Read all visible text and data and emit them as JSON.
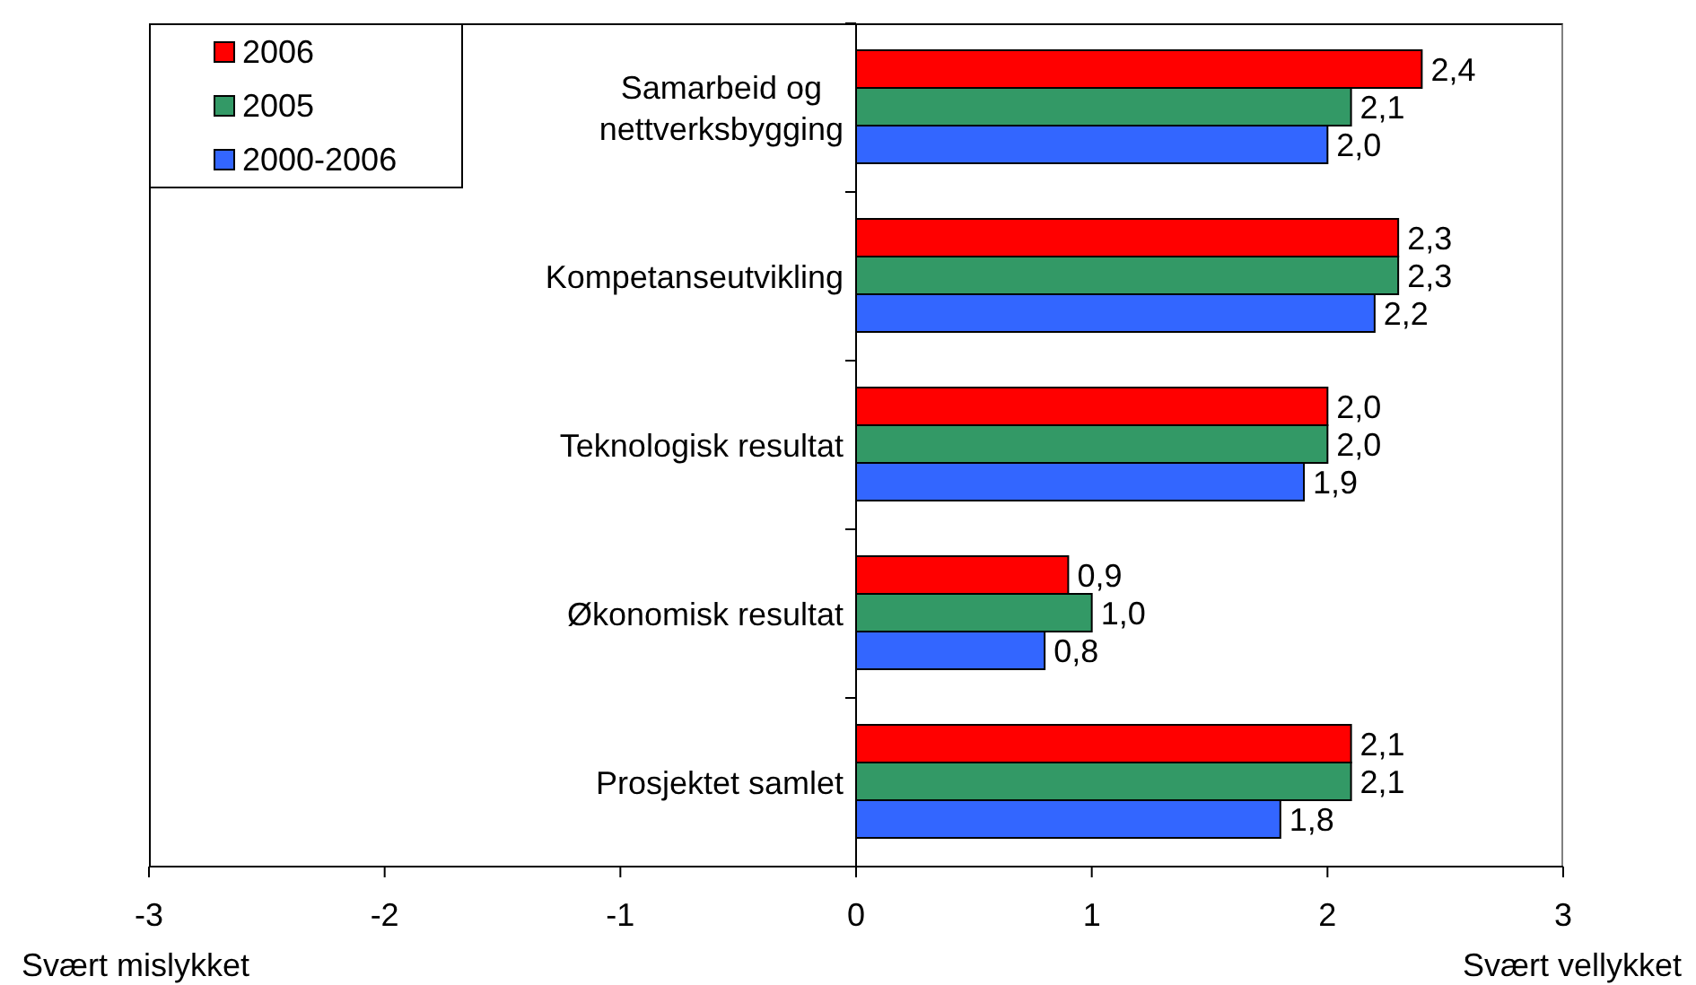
{
  "chart_data": {
    "type": "bar",
    "orientation": "horizontal",
    "categories": [
      "Samarbeid og nettverksbygging",
      "Kompetanseutvikling",
      "Teknologisk resultat",
      "Økonomisk resultat",
      "Prosjektet samlet"
    ],
    "series": [
      {
        "name": "2006",
        "color": "#ff0000",
        "values": [
          2.4,
          2.3,
          2.0,
          0.9,
          2.1
        ],
        "value_labels": [
          "2,4",
          "2,3",
          "2,0",
          "0,9",
          "2,1"
        ]
      },
      {
        "name": "2005",
        "color": "#339966",
        "values": [
          2.1,
          2.3,
          2.0,
          1.0,
          2.1
        ],
        "value_labels": [
          "2,1",
          "2,3",
          "2,0",
          "1,0",
          "2,1"
        ]
      },
      {
        "name": "2000-2006",
        "color": "#3366ff",
        "values": [
          2.0,
          2.2,
          1.9,
          0.8,
          1.8
        ],
        "value_labels": [
          "2,0",
          "2,2",
          "1,9",
          "0,8",
          "1,8"
        ]
      }
    ],
    "xlim": [
      -3,
      3
    ],
    "xticks": [
      -3,
      -2,
      -1,
      0,
      1,
      2,
      3
    ],
    "legend": "top left",
    "annotations": [
      "Svært mislykket",
      "Svært vellykket"
    ]
  }
}
